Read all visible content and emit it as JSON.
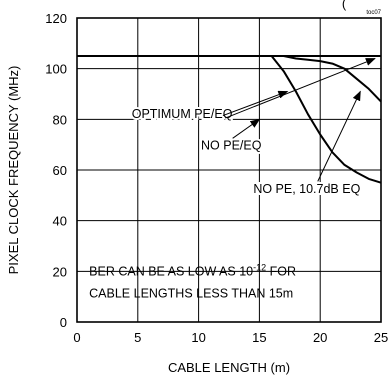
{
  "chart_data": {
    "type": "line",
    "xlabel": "CABLE LENGTH (m)",
    "ylabel": "PIXEL CLOCK FREQUENCY (MHz)",
    "xlim": [
      0,
      25
    ],
    "ylim": [
      0,
      120
    ],
    "x_ticks": [
      "0",
      "5",
      "10",
      "15",
      "20",
      "25"
    ],
    "y_ticks": [
      "0",
      "20",
      "40",
      "60",
      "80",
      "100",
      "120"
    ],
    "grid": true,
    "top_label_fragment": "(",
    "corner_code": "toc07",
    "series": [
      {
        "x": [
          0,
          25
        ],
        "y": [
          105,
          105
        ]
      },
      {
        "x": [
          17,
          18,
          19,
          20,
          21,
          22,
          23,
          24,
          25
        ],
        "y": [
          105,
          104,
          103.5,
          103,
          102,
          100,
          96,
          92,
          87
        ]
      },
      {
        "x": [
          16,
          17,
          18,
          19,
          20,
          21,
          22,
          23,
          24,
          25
        ],
        "y": [
          105,
          99,
          91,
          82,
          74,
          67,
          62,
          59,
          56.5,
          55
        ]
      }
    ],
    "annotations": [
      {
        "text": "OPTIMUM PE/EQ",
        "at": [
          4.5,
          80.5
        ]
      },
      {
        "text": "NO PE/EQ",
        "at": [
          10.2,
          68
        ]
      },
      {
        "text": "NO PE, 10.7dB EQ",
        "at": [
          14.5,
          51
        ]
      },
      {
        "lines": [
          "BER CAN BE AS LOW AS 10-12 FOR",
          "CABLE LENGTHS LESS THAN 15m"
        ],
        "base": "BER CAN BE AS LOW AS 10",
        "exp": "-12",
        "tail": " FOR"
      }
    ],
    "arrows": [
      {
        "from": [
          12.2,
          80.5
        ],
        "to": [
          24.5,
          104
        ]
      },
      {
        "from": [
          12.0,
          81.5
        ],
        "to": [
          17.3,
          91
        ]
      },
      {
        "from": [
          12.8,
          72.5
        ],
        "to": [
          15.0,
          80
        ]
      },
      {
        "from": [
          19.8,
          55.5
        ],
        "to": [
          23.3,
          91
        ]
      }
    ]
  }
}
